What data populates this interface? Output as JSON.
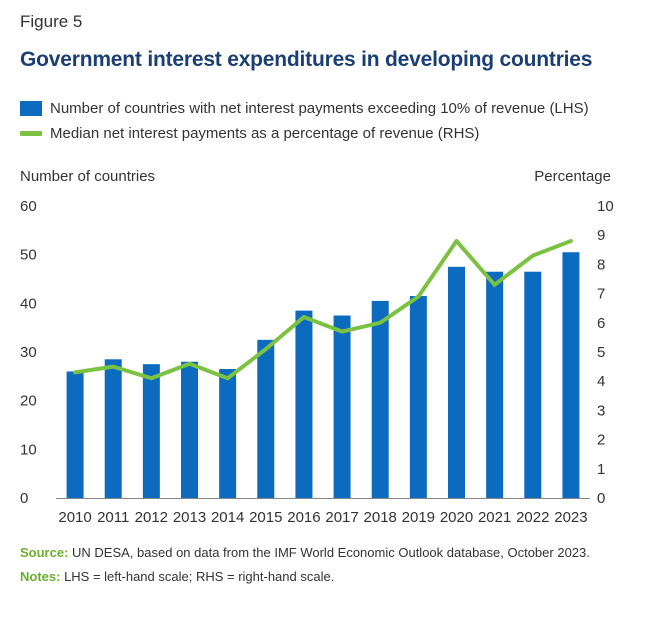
{
  "figure_label": "Figure 5",
  "chart_data": {
    "type": "bar",
    "title": "Government interest expenditures in developing countries",
    "categories": [
      "2010",
      "2011",
      "2012",
      "2013",
      "2014",
      "2015",
      "2016",
      "2017",
      "2018",
      "2019",
      "2020",
      "2021",
      "2022",
      "2023"
    ],
    "series": [
      {
        "name": "Number of countries with net interest payments exceeding 10% of revenue (LHS)",
        "type": "bar",
        "axis": "left",
        "color": "#0d6bbf",
        "values": [
          26,
          28.5,
          27.5,
          28,
          26.5,
          32.5,
          38.5,
          37.5,
          40.5,
          41.5,
          47.5,
          46.5,
          46.5,
          50.5
        ]
      },
      {
        "name": "Median net interest payments as a percentage of revenue (RHS)",
        "type": "line",
        "axis": "right",
        "color": "#7cc242",
        "values": [
          4.3,
          4.5,
          4.1,
          4.6,
          4.1,
          5.1,
          6.2,
          5.7,
          6.0,
          6.9,
          8.8,
          7.3,
          8.3,
          8.8
        ]
      }
    ],
    "ylabel_left": "Number of countries",
    "ylabel_right": "Percentage",
    "ylim_left": [
      0,
      60
    ],
    "yticks_left": [
      "0",
      "10",
      "20",
      "30",
      "40",
      "50",
      "60"
    ],
    "ylim_right": [
      0,
      10
    ],
    "yticks_right": [
      "0",
      "1",
      "2",
      "3",
      "4",
      "5",
      "6",
      "7",
      "8",
      "9",
      "10"
    ],
    "grid": false,
    "legend_position": "top-left"
  },
  "notes": {
    "source_key": "Source:",
    "source_text": " UN DESA, based on data from the IMF World Economic Outlook database, October 2023.",
    "notes_key": "Notes:",
    "notes_text": " LHS = left-hand scale; RHS = right-hand scale."
  }
}
